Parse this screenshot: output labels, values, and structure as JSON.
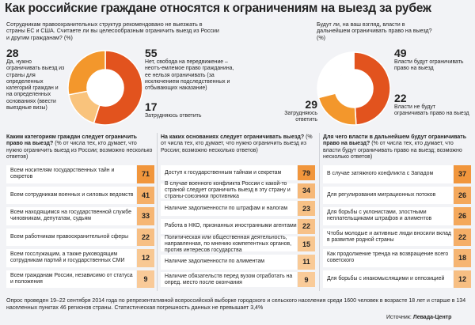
{
  "title": "Как российские граждане относятся к ограничениям на выезд за рубеж",
  "question1": "Сотрудникам правоохранительных структур рекомендовано не выезжать в страны ЕС и США. Считаете ли вы целесообразным ограничить выезд из России и другим гражданам? (%)",
  "question2": "Будут ли, на ваш взгляд, власти в дальнейшем ограничивать право на выезд? (%)",
  "colors": {
    "dark": "#e2531e",
    "mid": "#f3972c",
    "light": "#f9c37c",
    "white": "#ffffff",
    "cell": "#ffffff"
  },
  "donut1": {
    "labels": {
      "no": "Нет, свобода на передвижение – неотъ-емлемое право гражданина, ее нельзя ограничивать (за исключением подследственных и отбывающих наказание)",
      "yes": "Да, нужно ограничивать выезд из страны для определенных категорий граждан и на определенных основаниях (ввести выездные визы)",
      "hard": "Затрудняюсь ответить"
    }
  },
  "donut2": {
    "labels": {
      "will": "Власти будут ограничивать право на выезд",
      "wont": "Власти не будут ограничивать право на выезд",
      "hard": "Затрудняюсь ответить"
    }
  },
  "chart_data": [
    {
      "type": "pie",
      "title": "Сотрудникам правоохранительных структур рекомендовано не выезжать в страны ЕС и США. Считаете ли вы целесообразным ограничить выезд из России и другим гражданам? (%)",
      "categories": [
        "Нет, свобода на передвижение – неотъемлемое право гражданина",
        "Да, нужно ограничивать выезд из страны",
        "Затрудняюсь ответить"
      ],
      "values": [
        55,
        28,
        17
      ]
    },
    {
      "type": "pie",
      "title": "Будут ли, на ваш взгляд, власти в дальнейшем ограничивать право на выезд? (%)",
      "categories": [
        "Власти будут ограничивать право на выезд",
        "Власти не будут ограничивать право на выезд",
        "Затрудняюсь ответить"
      ],
      "values": [
        49,
        22,
        29
      ]
    },
    {
      "type": "table",
      "title": "Каким категориям граждан следует ограничить право на выезд?",
      "subtitle": "(% от числа тех, кто думает, что нужно ограничить выезд из России; возможно несколько ответов)",
      "categories": [
        "Всем носителям государственных тайн и секретов",
        "Всем сотрудникам военных и силовых ведомств",
        "Всем находящимся на государственной службе чиновникам, депутатам, судьям",
        "Всем работникам правоохранительной сферы",
        "Всем госслужащим, а также руководящим сотрудникам партий и государственных СМИ",
        "Всем гражданам России, независимо от статуса и положения"
      ],
      "values": [
        71,
        41,
        33,
        22,
        12,
        9
      ]
    },
    {
      "type": "table",
      "title": "На каких основаниях следует ограничивать выезд?",
      "subtitle": "(% от числа тех, кто думает, что нужно ограничить выезд из России; возможно несколько ответов)",
      "categories": [
        "Доступ к государственным тайнам и секретам",
        "В случае военного конфликта России с какой-то страной следует ограничить выезд в эту страну и страны-союзники противника",
        "Наличие задолженности по штрафам и налогам",
        "Работа в НКО, признанных иностранными агентами",
        "Политическая или общественная деятельность, направленная, по мнению компетентных органов, против интересов государства",
        "Наличие задолженности по алиментам",
        "Наличие обязательств перед вузом отработать на опред. место после окончания"
      ],
      "values": [
        79,
        34,
        23,
        22,
        15,
        11,
        9
      ]
    },
    {
      "type": "table",
      "title": "Для чего власти в дальнейшем будут ограничивать право на выезд?",
      "subtitle": "(% от числа тех, кто думает, что власти будут ограничивать право на выезд; возможно несколько ответов)",
      "categories": [
        "В случае затяжного конфликта с Западом",
        "Для регулирования миграционных потоков",
        "Для борьбы с уклонистами, злостными неплательщиками штрафов и алиментов",
        "Чтобы молодые и активные люди вносили вклад в развитие родной страны",
        "Как продолжение тренда на возвращение всего советского",
        "Для борьбы с инакомыслящими и оппозицией"
      ],
      "values": [
        37,
        26,
        26,
        22,
        18,
        12
      ]
    }
  ],
  "sections": {
    "s1": {
      "head_bold": "Каким категориям граждан следует ограничить право на выезд?",
      "head_rest": " (% от числа тех, кто думает, что нужно ограничить выезд из России; возможно несколько ответов)"
    },
    "s2": {
      "head_bold": "На каких основаниях следует ограничивать выезд?",
      "head_rest": " (% от числа тех, кто думает, что нужно ограничить выезд из России; возможно несколько ответов)"
    },
    "s3": {
      "head_bold": "Для чего власти в дальнейшем будут ограничивать право на выезд?",
      "head_rest": " (% от числа тех, кто думает, что власти будут ограничивать право на выезд; возможно несколько ответов)"
    }
  },
  "footer": "Опрос проведен 19–22 сентября 2014 года по репрезентативной всероссийской выборке городского и сельского населения среди 1600 человек в возрасте 18 лет и старше в 134 населенных пунктах 46 регионов страны. Статистическая погрешность данных не превышает 3,4%",
  "source_label": "Источник:",
  "source_value": "Левада-Центр"
}
